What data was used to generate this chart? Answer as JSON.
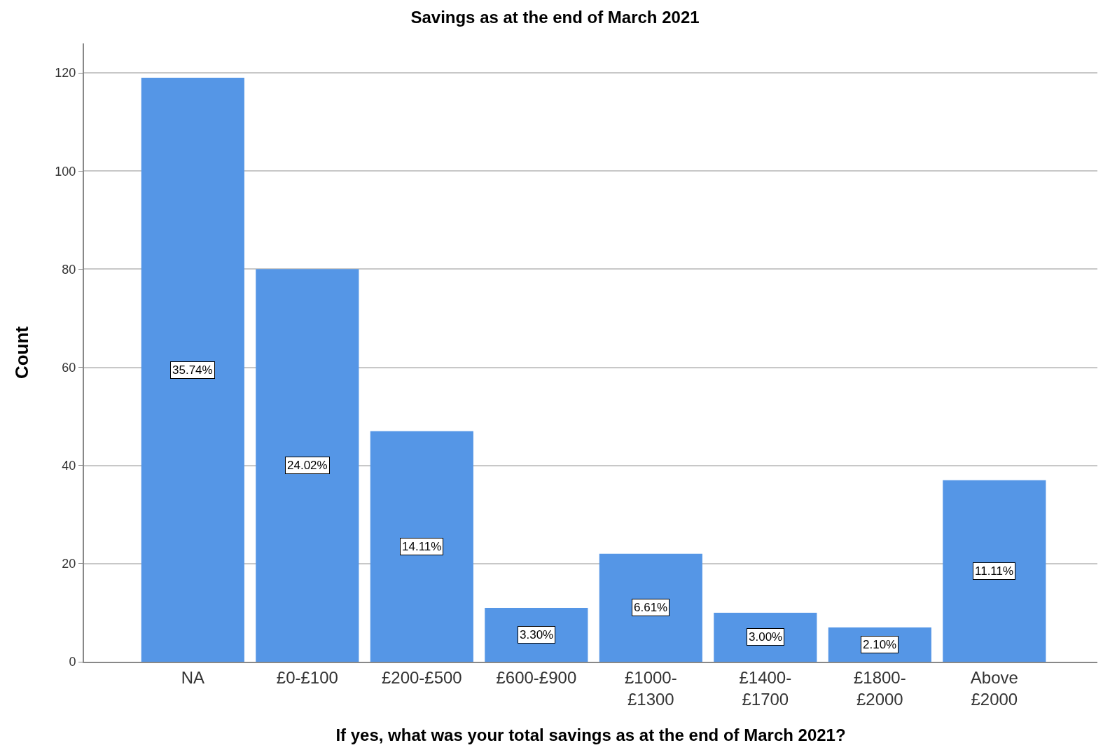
{
  "chart_data": {
    "type": "bar",
    "title": "Savings as at the end of March 2021",
    "xlabel": "If yes, what was your total savings as at the end of March 2021?",
    "ylabel": "Count",
    "categories": [
      "NA",
      "£0-£100",
      "£200-£500",
      "£600-£900",
      "£1000-£1300",
      "£1400-£1700",
      "£1800-£2000",
      "Above £2000"
    ],
    "values": [
      119,
      80,
      47,
      11,
      22,
      10,
      7,
      37
    ],
    "annotations": [
      "35.74%",
      "24.02%",
      "14.11%",
      "3.30%",
      "6.61%",
      "3.00%",
      "2.10%",
      "11.11%"
    ],
    "color": "#5596e6",
    "ylim": [
      0,
      126
    ],
    "yticks": [
      0,
      20,
      40,
      60,
      80,
      100,
      120
    ],
    "grid": "y",
    "legend": false
  }
}
